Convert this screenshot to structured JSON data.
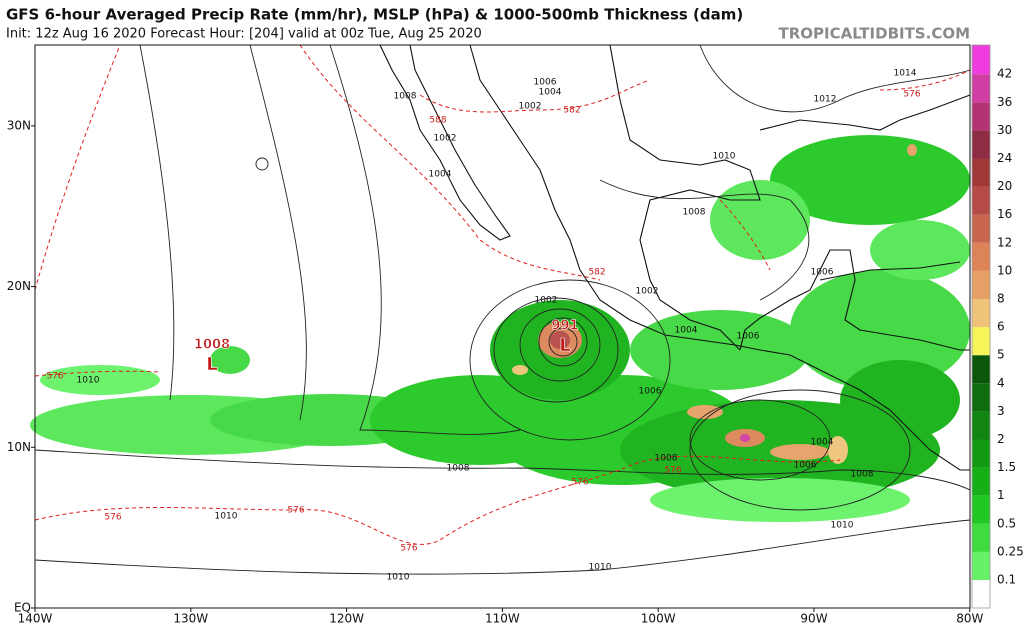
{
  "header": {
    "title": "GFS 6-hour Averaged Precip Rate (mm/hr), MSLP (hPa) & 1000-500mb Thickness (dam)",
    "subtitle": "Init: 12z Aug 16 2020   Forecast Hour: [204]   valid at 00z Tue, Aug 25 2020",
    "credit": "TROPICALTIDBITS.COM"
  },
  "map": {
    "lat_labels": [
      "EQ",
      "10N",
      "20N",
      "30N"
    ],
    "lon_labels": [
      "140W",
      "130W",
      "120W",
      "110W",
      "100W",
      "90W",
      "80W"
    ],
    "lows": [
      {
        "pressure": "1008",
        "symbol": "L"
      },
      {
        "pressure": "991",
        "symbol": "L"
      }
    ],
    "isobar_labels": [
      "1010",
      "1006",
      "1002",
      "1004",
      "1008",
      "1002",
      "1004",
      "1010",
      "1008",
      "1012",
      "1014",
      "1006",
      "1002",
      "1002",
      "1004",
      "1006",
      "1006",
      "1008",
      "1008",
      "1010",
      "1010",
      "1010",
      "1010",
      "1008",
      "1006",
      "1004"
    ],
    "thickness_labels": [
      "576",
      "588",
      "582",
      "576",
      "582",
      "576",
      "576",
      "576",
      "576",
      "576"
    ]
  },
  "colorbar": {
    "levels": [
      0.1,
      0.25,
      0.5,
      1,
      1.5,
      2,
      3,
      4,
      5,
      6,
      8,
      10,
      12,
      16,
      20,
      24,
      30,
      36,
      42
    ],
    "colors": [
      "#ffffff",
      "#66f266",
      "#3edc3e",
      "#22c822",
      "#16b016",
      "#139a13",
      "#118411",
      "#0e6e0e",
      "#0b560b",
      "#f5f55a",
      "#efc47a",
      "#e6a066",
      "#dc8458",
      "#c8664e",
      "#b64a46",
      "#a03838",
      "#8e2c44",
      "#b23474",
      "#d03ea4",
      "#ee3cde"
    ]
  }
}
